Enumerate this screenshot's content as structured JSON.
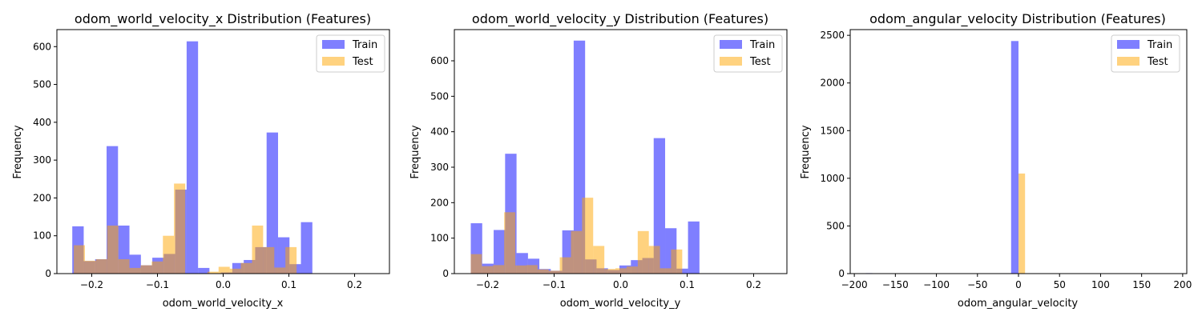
{
  "chart_data": [
    {
      "type": "histogram",
      "title": "odom_world_velocity_x Distribution (Features)",
      "xlabel": "odom_world_velocity_x",
      "ylabel": "Frequency",
      "xlim": [
        -0.253,
        0.253
      ],
      "ylim": [
        0,
        645
      ],
      "xticks": [
        -0.2,
        -0.1,
        0.0,
        0.1,
        0.2
      ],
      "xtick_labels": [
        "−0.2",
        "−0.1",
        "0.0",
        "0.1",
        "0.2"
      ],
      "yticks": [
        0,
        100,
        200,
        300,
        400,
        500,
        600
      ],
      "ytick_labels": [
        "0",
        "100",
        "200",
        "300",
        "400",
        "500",
        "600"
      ],
      "legend": {
        "position": "upper-right",
        "entries": [
          "Train",
          "Test"
        ]
      },
      "series": [
        {
          "name": "Train",
          "color": "#0000ff",
          "alpha": 0.5,
          "bins": [
            -0.2296,
            -0.2122,
            -0.1948,
            -0.1774,
            -0.16,
            -0.1426,
            -0.1252,
            -0.1078,
            -0.0904,
            -0.073,
            -0.0556,
            -0.0382,
            -0.0209,
            -0.0035,
            0.0139,
            0.0313,
            0.0487,
            0.0661,
            0.0835,
            0.1009,
            0.1183,
            0.1357,
            0.1531,
            0.1705,
            0.1879,
            0.2053,
            0.2227
          ],
          "counts": [
            125,
            33,
            38,
            337,
            127,
            50,
            22,
            42,
            52,
            222,
            614,
            15,
            0,
            3,
            28,
            36,
            70,
            373,
            96,
            25,
            136,
            0,
            0,
            0,
            0,
            0
          ]
        },
        {
          "name": "Test",
          "color": "#ffa500",
          "alpha": 0.5,
          "bins": [
            -0.2273,
            -0.2104,
            -0.1934,
            -0.1765,
            -0.1595,
            -0.1426,
            -0.1256,
            -0.1087,
            -0.0917,
            -0.0748,
            -0.0578,
            -0.0409,
            -0.0239,
            -0.007,
            0.01,
            0.0269,
            0.0439,
            0.0608,
            0.0778,
            0.0947,
            0.1117,
            0.1286,
            0.1456,
            0.1625,
            0.1795,
            0.1964,
            0.2134
          ],
          "counts": [
            75,
            34,
            38,
            127,
            38,
            15,
            22,
            32,
            100,
            238,
            0,
            0,
            5,
            18,
            13,
            28,
            127,
            70,
            16,
            70,
            0,
            0,
            0,
            0,
            0,
            0
          ]
        }
      ]
    },
    {
      "type": "histogram",
      "title": "odom_world_velocity_y Distribution (Features)",
      "xlabel": "odom_world_velocity_y",
      "ylabel": "Frequency",
      "xlim": [
        -0.25,
        0.25
      ],
      "ylim": [
        0,
        688
      ],
      "xticks": [
        -0.2,
        -0.1,
        0.0,
        0.1,
        0.2
      ],
      "xtick_labels": [
        "−0.2",
        "−0.1",
        "0.0",
        "0.1",
        "0.2"
      ],
      "yticks": [
        0,
        100,
        200,
        300,
        400,
        500,
        600
      ],
      "ytick_labels": [
        "0",
        "100",
        "200",
        "300",
        "400",
        "500",
        "600"
      ],
      "legend": {
        "position": "upper-right",
        "entries": [
          "Train",
          "Test"
        ]
      },
      "series": [
        {
          "name": "Train",
          "color": "#0000ff",
          "alpha": 0.5,
          "bins": [
            -0.2253,
            -0.2081,
            -0.1909,
            -0.1737,
            -0.1565,
            -0.1393,
            -0.1222,
            -0.105,
            -0.0878,
            -0.0706,
            -0.0534,
            -0.0362,
            -0.019,
            -0.0018,
            0.0154,
            0.0326,
            0.0497,
            0.0669,
            0.0841,
            0.1013,
            0.1185,
            0.1357,
            0.1529,
            0.1701,
            0.1873,
            0.2045,
            0.2217
          ],
          "counts": [
            142,
            28,
            123,
            338,
            58,
            42,
            13,
            8,
            122,
            657,
            40,
            15,
            10,
            23,
            38,
            44,
            382,
            128,
            14,
            147,
            0,
            0,
            0,
            0,
            0,
            0
          ]
        },
        {
          "name": "Test",
          "color": "#ffa500",
          "alpha": 0.5,
          "bins": [
            -0.2253,
            -0.2086,
            -0.1918,
            -0.1751,
            -0.1584,
            -0.1417,
            -0.1249,
            -0.1082,
            -0.0915,
            -0.0747,
            -0.058,
            -0.0413,
            -0.0245,
            -0.0078,
            0.0089,
            0.0257,
            0.0424,
            0.0591,
            0.0758,
            0.0926,
            0.1093,
            0.126,
            0.1428,
            0.1595,
            0.1762,
            0.193,
            0.2097
          ],
          "counts": [
            55,
            21,
            24,
            173,
            23,
            24,
            12,
            8,
            46,
            120,
            214,
            78,
            13,
            15,
            20,
            120,
            78,
            15,
            68,
            0,
            0,
            0,
            0,
            0,
            0,
            0
          ]
        }
      ]
    },
    {
      "type": "histogram",
      "title": "odom_angular_velocity Distribution (Features)",
      "xlabel": "odom_angular_velocity",
      "ylabel": "Frequency",
      "xlim": [
        -205,
        205
      ],
      "ylim": [
        0,
        2560
      ],
      "xticks": [
        -200,
        -150,
        -100,
        -50,
        0,
        50,
        100,
        150,
        200
      ],
      "xtick_labels": [
        "−200",
        "−150",
        "−100",
        "−50",
        "0",
        "50",
        "100",
        "150",
        "200"
      ],
      "yticks": [
        0,
        500,
        1000,
        1500,
        2000,
        2500
      ],
      "ytick_labels": [
        "0",
        "500",
        "1000",
        "1500",
        "2000",
        "2500"
      ],
      "legend": {
        "position": "upper-right",
        "entries": [
          "Train",
          "Test"
        ]
      },
      "series": [
        {
          "name": "Train",
          "color": "#0000ff",
          "alpha": 0.5,
          "bins": [
            -186,
            -178,
            -9,
            0
          ],
          "counts": [
            5,
            0,
            2440
          ]
        },
        {
          "name": "Test",
          "color": "#ffa500",
          "alpha": 0.5,
          "bins": [
            0,
            8,
            178,
            186
          ],
          "counts": [
            1050,
            0,
            4
          ]
        }
      ]
    }
  ]
}
